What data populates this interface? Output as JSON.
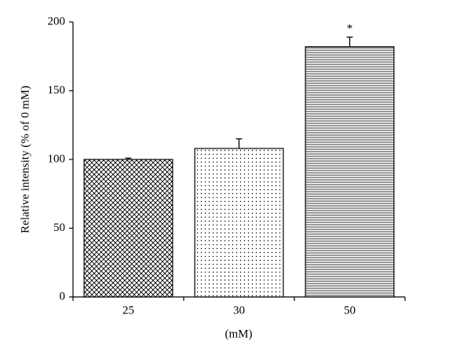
{
  "chart_data": {
    "type": "bar",
    "x_label": "(mM)",
    "y_label": "Relative intensity (% of 0 mM)",
    "categories": [
      "25",
      "30",
      "50"
    ],
    "values": [
      100,
      108,
      182
    ],
    "errors": [
      1,
      7,
      7
    ],
    "annotations": [
      null,
      null,
      "*"
    ],
    "patterns": [
      "crosshatch",
      "dots",
      "hlines"
    ],
    "color": "#000000",
    "ylim": [
      0,
      200
    ],
    "yticks": [
      0,
      50,
      100,
      150,
      200
    ],
    "grid": false
  }
}
